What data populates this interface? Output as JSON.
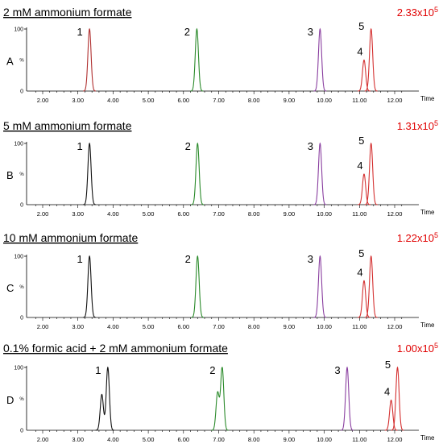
{
  "chart_data": [
    {
      "type": "line",
      "panel": "A",
      "title": "2 mM ammonium formate",
      "intensity": {
        "mantissa": "2.33x10",
        "exponent": "5"
      },
      "xlabel": "Time",
      "xlim": [
        1.6,
        12.3
      ],
      "xticks": [
        "2.00",
        "3.00",
        "4.00",
        "5.00",
        "6.00",
        "7.00",
        "8.00",
        "9.00",
        "10.00",
        "11.00",
        "12.00"
      ],
      "ylim": [
        0,
        100
      ],
      "yticks": [
        "0",
        "100"
      ],
      "y_unit_label": "%",
      "peaks": [
        {
          "label": "1",
          "rt": 3.33,
          "height": 100,
          "color": "#b03030"
        },
        {
          "label": "2",
          "rt": 6.38,
          "height": 100,
          "color": "#2a8a2a"
        },
        {
          "label": "3",
          "rt": 9.88,
          "height": 100,
          "color": "#8a3fa0"
        },
        {
          "label": "4",
          "rt": 11.13,
          "height": 50,
          "color": "#d43030"
        },
        {
          "label": "5",
          "rt": 11.33,
          "height": 100,
          "color": "#d43030"
        }
      ]
    },
    {
      "type": "line",
      "panel": "B",
      "title": "5 mM ammonium formate",
      "intensity": {
        "mantissa": "1.31x10",
        "exponent": "5"
      },
      "xlabel": "Time",
      "xlim": [
        1.6,
        12.3
      ],
      "xticks": [
        "2.00",
        "3.00",
        "4.00",
        "5.00",
        "6.00",
        "7.00",
        "8.00",
        "9.00",
        "10.00",
        "11.00",
        "12.00"
      ],
      "ylim": [
        0,
        100
      ],
      "yticks": [
        "0",
        "100"
      ],
      "y_unit_label": "%",
      "peaks": [
        {
          "label": "1",
          "rt": 3.33,
          "height": 100,
          "color": "#111111"
        },
        {
          "label": "2",
          "rt": 6.4,
          "height": 100,
          "color": "#2a8a2a"
        },
        {
          "label": "3",
          "rt": 9.88,
          "height": 100,
          "color": "#8a3fa0"
        },
        {
          "label": "4",
          "rt": 11.13,
          "height": 50,
          "color": "#d43030"
        },
        {
          "label": "5",
          "rt": 11.33,
          "height": 100,
          "color": "#d43030"
        }
      ]
    },
    {
      "type": "line",
      "panel": "C",
      "title": "10 mM ammonium formate",
      "intensity": {
        "mantissa": "1.22x10",
        "exponent": "5"
      },
      "xlabel": "Time",
      "xlim": [
        1.6,
        12.3
      ],
      "xticks": [
        "2.00",
        "3.00",
        "4.00",
        "5.00",
        "6.00",
        "7.00",
        "8.00",
        "9.00",
        "10.00",
        "11.00",
        "12.00"
      ],
      "ylim": [
        0,
        100
      ],
      "yticks": [
        "0",
        "100"
      ],
      "y_unit_label": "%",
      "peaks": [
        {
          "label": "1",
          "rt": 3.33,
          "height": 100,
          "color": "#111111"
        },
        {
          "label": "2",
          "rt": 6.4,
          "height": 100,
          "color": "#2a8a2a"
        },
        {
          "label": "3",
          "rt": 9.88,
          "height": 100,
          "color": "#8a3fa0"
        },
        {
          "label": "4",
          "rt": 11.13,
          "height": 60,
          "color": "#d43030"
        },
        {
          "label": "5",
          "rt": 11.33,
          "height": 100,
          "color": "#d43030"
        }
      ]
    },
    {
      "type": "line",
      "panel": "D",
      "title": "0.1% formic acid + 2 mM ammonium formate",
      "intensity": {
        "mantissa": "1.00x10",
        "exponent": "5"
      },
      "xlabel": "Time",
      "xlim": [
        1.6,
        12.3
      ],
      "xticks": [
        "2.00",
        "3.00",
        "4.00",
        "5.00",
        "6.00",
        "7.00",
        "8.00",
        "9.00",
        "10.00",
        "11.00",
        "12.00"
      ],
      "ylim": [
        0,
        100
      ],
      "yticks": [
        "0",
        "100"
      ],
      "y_unit_label": "%",
      "peaks": [
        {
          "label": "1",
          "rt": 3.85,
          "height": 100,
          "color": "#111111",
          "shoulder": {
            "rt": 3.68,
            "height": 62
          }
        },
        {
          "label": "2",
          "rt": 7.1,
          "height": 100,
          "color": "#2a8a2a",
          "shoulder": {
            "rt": 6.97,
            "height": 65
          }
        },
        {
          "label": "3",
          "rt": 10.65,
          "height": 100,
          "color": "#8a3fa0"
        },
        {
          "label": "4",
          "rt": 11.9,
          "height": 48,
          "color": "#d43030"
        },
        {
          "label": "5",
          "rt": 12.08,
          "height": 100,
          "color": "#d43030"
        }
      ]
    }
  ]
}
